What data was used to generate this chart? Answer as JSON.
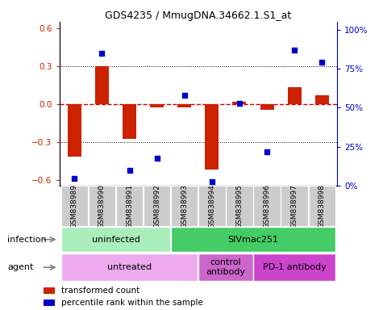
{
  "title": "GDS4235 / MmugDNA.34662.1.S1_at",
  "samples": [
    "GSM838989",
    "GSM838990",
    "GSM838991",
    "GSM838992",
    "GSM838993",
    "GSM838994",
    "GSM838995",
    "GSM838996",
    "GSM838997",
    "GSM838998"
  ],
  "red_bars": [
    -0.42,
    0.3,
    -0.28,
    -0.03,
    -0.03,
    -0.52,
    0.02,
    -0.05,
    0.13,
    0.07
  ],
  "blue_squares": [
    5,
    85,
    10,
    18,
    58,
    3,
    53,
    22,
    87,
    79
  ],
  "ylim_left": [
    -0.65,
    0.65
  ],
  "ylim_right": [
    0,
    105
  ],
  "yticks_left": [
    -0.6,
    -0.3,
    0.0,
    0.3,
    0.6
  ],
  "yticks_right": [
    0,
    25,
    50,
    75,
    100
  ],
  "ytick_labels_right": [
    "0%",
    "25%",
    "50%",
    "75%",
    "100%"
  ],
  "hlines_dotted": [
    -0.3,
    0.3
  ],
  "hline_zero": 0.0,
  "bar_color": "#cc2200",
  "square_color": "#0000cc",
  "zero_line_color": "#cc0000",
  "infection_groups": [
    {
      "label": "uninfected",
      "start": 0,
      "end": 3,
      "color": "#aaeebb"
    },
    {
      "label": "SIVmac251",
      "start": 4,
      "end": 9,
      "color": "#44cc66"
    }
  ],
  "agent_groups": [
    {
      "label": "untreated",
      "start": 0,
      "end": 4,
      "color": "#eeaaee"
    },
    {
      "label": "control\nantibody",
      "start": 5,
      "end": 6,
      "color": "#cc66cc"
    },
    {
      "label": "PD-1 antibody",
      "start": 7,
      "end": 9,
      "color": "#cc44cc"
    }
  ],
  "legend_items": [
    {
      "label": "transformed count",
      "color": "#cc2200"
    },
    {
      "label": "percentile rank within the sample",
      "color": "#0000cc"
    }
  ],
  "infection_label": "infection",
  "agent_label": "agent",
  "gray_sample_bg": "#cccccc",
  "sample_sep_color": "white"
}
